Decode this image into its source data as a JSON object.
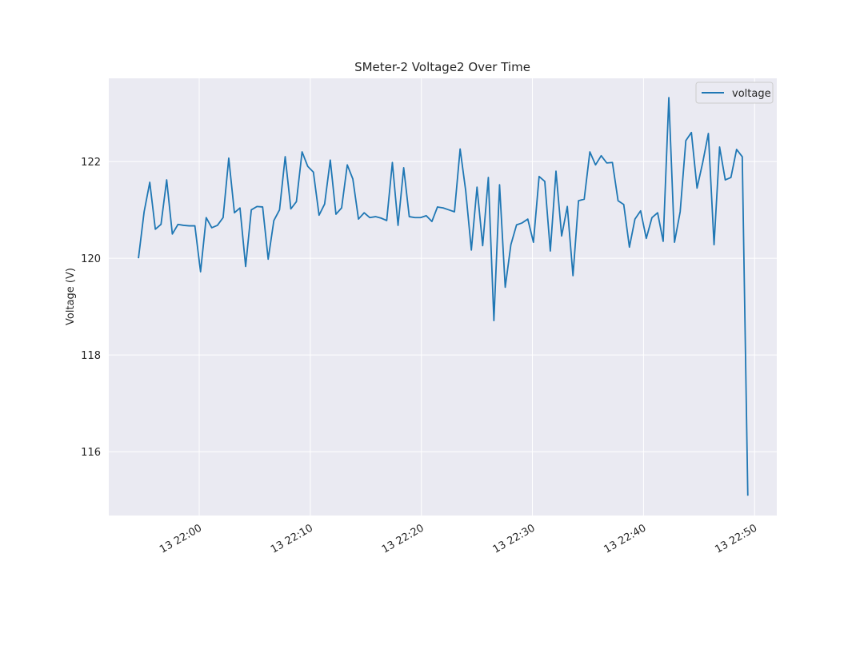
{
  "chart_data": {
    "type": "line",
    "title": "SMeter-2 Voltage2 Over Time",
    "y_label": "Voltage (V)",
    "x": [
      -5.47,
      -4.96,
      -4.45,
      -3.95,
      -3.44,
      -2.93,
      -2.42,
      -1.91,
      -1.41,
      -0.9,
      -0.39,
      0.12,
      0.63,
      1.13,
      1.64,
      2.15,
      2.66,
      3.17,
      3.67,
      4.18,
      4.69,
      5.2,
      5.71,
      6.21,
      6.72,
      7.23,
      7.74,
      8.25,
      8.75,
      9.26,
      9.77,
      10.28,
      10.79,
      11.29,
      11.8,
      12.31,
      12.82,
      13.33,
      13.83,
      14.34,
      14.85,
      15.36,
      15.87,
      16.37,
      16.88,
      17.39,
      17.9,
      18.41,
      18.91,
      19.42,
      19.93,
      20.44,
      20.95,
      21.45,
      21.96,
      22.47,
      22.98,
      23.49,
      23.99,
      24.5,
      25.01,
      25.52,
      26.03,
      26.53,
      27.04,
      27.55,
      28.06,
      28.57,
      29.07,
      29.58,
      30.09,
      30.6,
      31.11,
      31.61,
      32.12,
      32.63,
      33.14,
      33.65,
      34.15,
      34.66,
      35.17,
      35.68,
      36.19,
      36.69,
      37.2,
      37.71,
      38.22,
      38.73,
      39.23,
      39.74,
      40.25,
      40.76,
      41.27,
      41.77,
      42.28,
      42.79,
      43.3,
      43.81,
      44.31,
      44.82,
      45.33,
      45.84,
      46.35,
      46.85,
      47.36,
      47.87,
      48.38,
      48.89,
      49.39
    ],
    "series": [
      {
        "name": "voltage",
        "color": "#1f77b4",
        "values": [
          120.0,
          120.96,
          121.57,
          120.6,
          120.7,
          121.62,
          120.5,
          120.7,
          120.68,
          120.67,
          120.67,
          119.72,
          120.84,
          120.63,
          120.68,
          120.84,
          122.07,
          120.94,
          121.04,
          119.83,
          121.0,
          121.07,
          121.06,
          119.98,
          120.78,
          121.0,
          122.1,
          121.02,
          121.17,
          122.2,
          121.9,
          121.78,
          120.89,
          121.12,
          122.03,
          120.91,
          121.04,
          121.93,
          121.64,
          120.81,
          120.94,
          120.84,
          120.86,
          120.83,
          120.78,
          121.98,
          120.68,
          121.87,
          120.86,
          120.84,
          120.84,
          120.88,
          120.76,
          121.06,
          121.04,
          121.0,
          120.96,
          122.26,
          121.4,
          120.17,
          121.47,
          120.26,
          121.67,
          118.71,
          121.52,
          119.4,
          120.28,
          120.69,
          120.73,
          120.81,
          120.33,
          121.69,
          121.59,
          120.15,
          121.8,
          120.46,
          121.07,
          119.64,
          121.19,
          121.22,
          122.2,
          121.93,
          122.12,
          121.97,
          121.98,
          121.19,
          121.11,
          120.23,
          120.81,
          120.98,
          120.41,
          120.84,
          120.94,
          120.35,
          123.32,
          120.33,
          120.96,
          122.43,
          122.6,
          121.45,
          121.98,
          122.58,
          120.28,
          122.3,
          121.62,
          121.67,
          122.25,
          122.1,
          115.09
        ]
      }
    ],
    "xlim": [
      -8.14,
      52.0
    ],
    "xticks": [
      {
        "value": 0,
        "label": "13 22:00"
      },
      {
        "value": 10,
        "label": "13 22:10"
      },
      {
        "value": 20,
        "label": "13 22:20"
      },
      {
        "value": 30,
        "label": "13 22:30"
      },
      {
        "value": 40,
        "label": "13 22:40"
      },
      {
        "value": 50,
        "label": "13 22:50"
      }
    ],
    "ylim": [
      114.68,
      123.72
    ],
    "yticks": [
      116,
      118,
      120,
      122
    ],
    "grid": true,
    "legend": "upper right"
  }
}
